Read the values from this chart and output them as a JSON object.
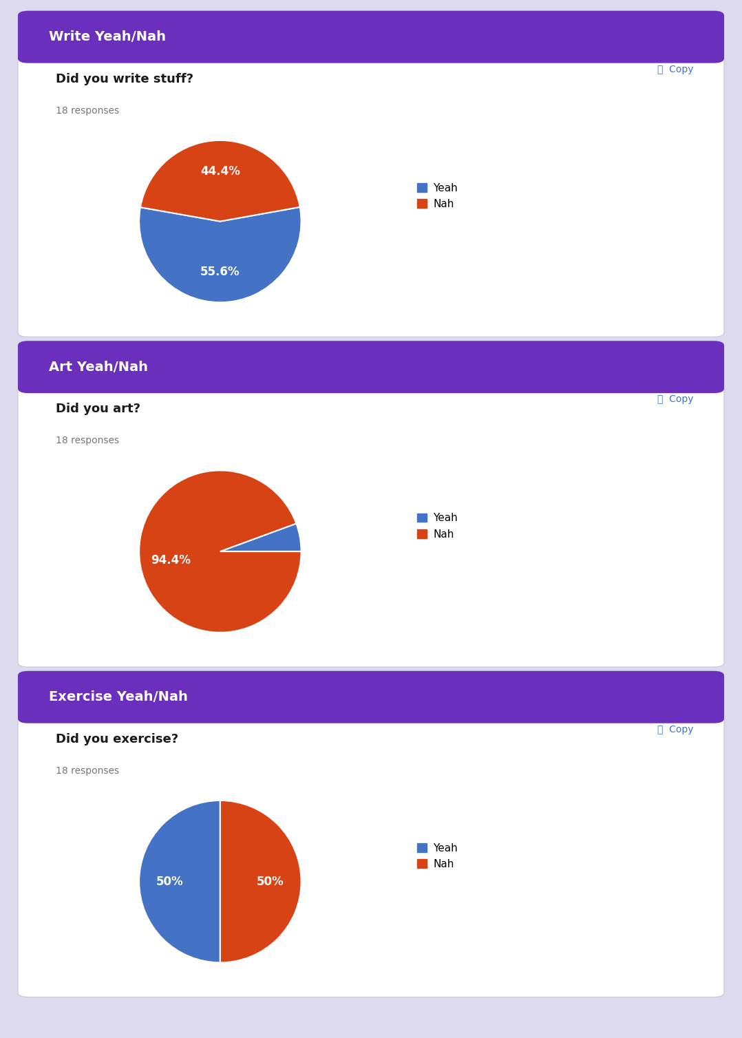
{
  "charts": [
    {
      "header": "Write Yeah/Nah",
      "question": "Did you write stuff?",
      "responses": "18 responses",
      "yeah_pct": 55.6,
      "nah_pct": 44.4,
      "yeah_label": "55.6%",
      "nah_label": "44.4%",
      "startangle": 170
    },
    {
      "header": "Art Yeah/Nah",
      "question": "Did you art?",
      "responses": "18 responses",
      "yeah_pct": 5.6,
      "nah_pct": 94.4,
      "yeah_label": "",
      "nah_label": "94.4%",
      "startangle": 0
    },
    {
      "header": "Exercise Yeah/Nah",
      "question": "Did you exercise?",
      "responses": "18 responses",
      "yeah_pct": 50.0,
      "nah_pct": 50.0,
      "yeah_label": "50%",
      "nah_label": "50%",
      "startangle": 90
    }
  ],
  "header_color": "#6b2fbe",
  "background_color": "#dddaee",
  "card_color": "#ffffff",
  "yeah_color": "#4472c4",
  "nah_color": "#d84315",
  "header_text_color": "#ffffff",
  "question_text_color": "#1a1a1a",
  "responses_text_color": "#777777",
  "copy_color": "#4472c4",
  "legend_yeah": "Yeah",
  "legend_nah": "Nah"
}
